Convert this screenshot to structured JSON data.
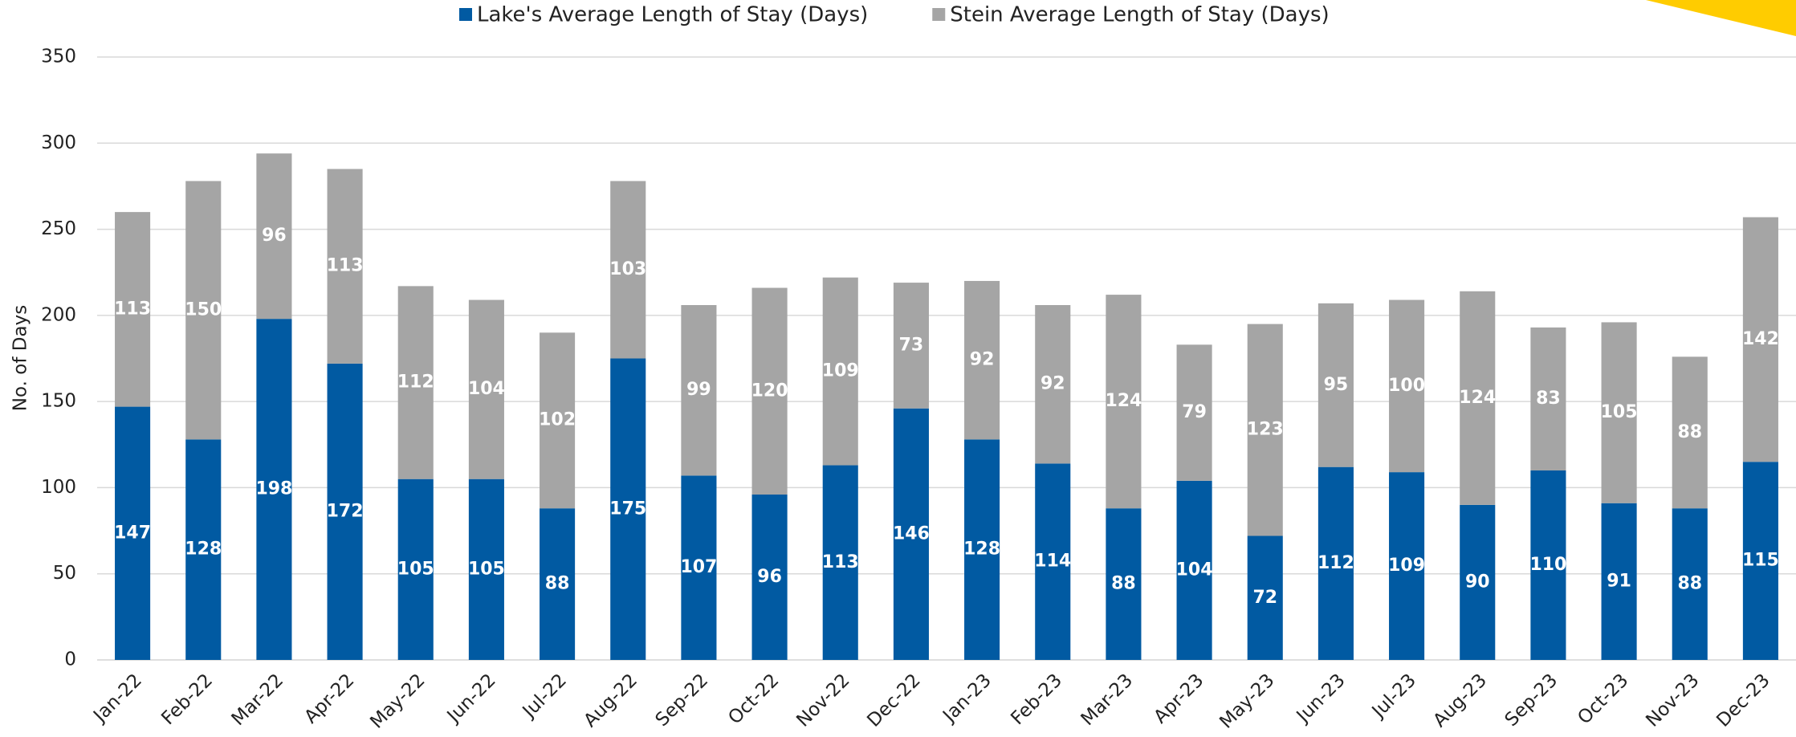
{
  "chart_data": {
    "type": "stacked_bar",
    "y_label": "No. of Days",
    "categories": [
      "Jan-22",
      "Feb-22",
      "Mar-22",
      "Apr-22",
      "May-22",
      "Jun-22",
      "Jul-22",
      "Aug-22",
      "Sep-22",
      "Oct-22",
      "Nov-22",
      "Dec-22",
      "Jan-23",
      "Feb-23",
      "Mar-23",
      "Apr-23",
      "May-23",
      "Jun-23",
      "Jul-23",
      "Aug-23",
      "Sep-23",
      "Oct-23",
      "Nov-23",
      "Dec-23"
    ],
    "series": [
      {
        "name": "Lake's Average Length of Stay (Days)",
        "color": "#015aa2",
        "values": [
          147,
          128,
          198,
          172,
          105,
          105,
          88,
          175,
          107,
          96,
          113,
          146,
          128,
          114,
          88,
          104,
          72,
          112,
          109,
          90,
          110,
          91,
          88,
          115
        ]
      },
      {
        "name": "Stein Average Length of Stay (Days)",
        "color": "#a5a5a5",
        "values": [
          113,
          150,
          96,
          113,
          112,
          104,
          102,
          103,
          99,
          120,
          109,
          73,
          92,
          92,
          124,
          79,
          123,
          95,
          100,
          124,
          83,
          105,
          88,
          142
        ]
      }
    ],
    "ylim": [
      0,
      350
    ],
    "yticks": [
      0,
      50,
      100,
      150,
      200,
      250,
      300,
      350
    ],
    "grid": true,
    "legend": "top"
  }
}
